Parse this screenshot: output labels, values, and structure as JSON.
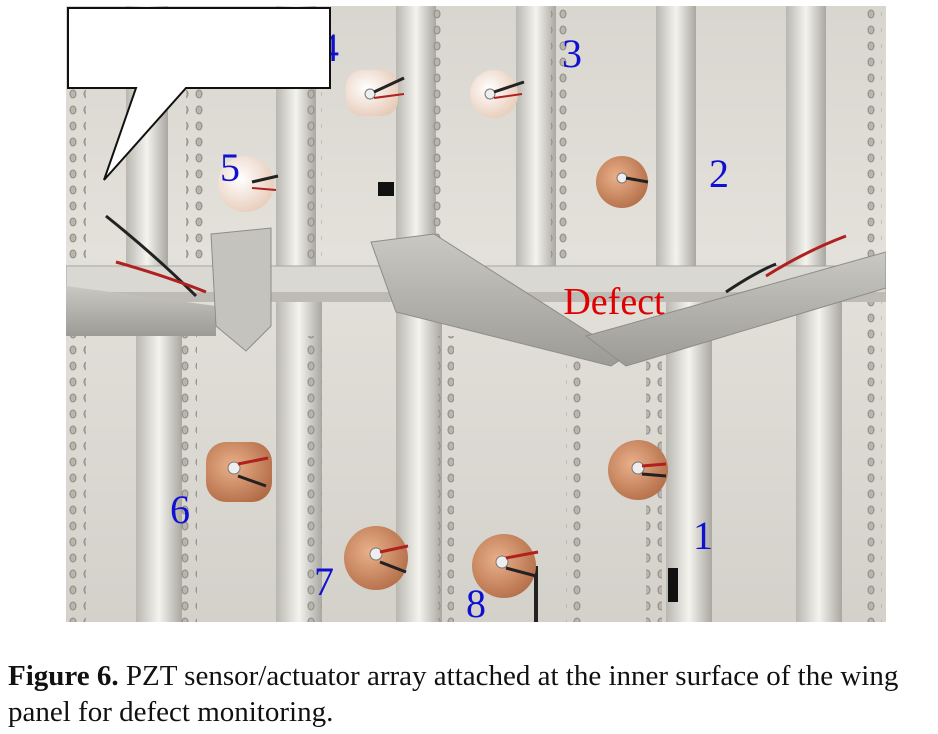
{
  "figure": {
    "sensors": [
      {
        "label": "1"
      },
      {
        "label": "2"
      },
      {
        "label": "3"
      },
      {
        "label": "4"
      },
      {
        "label": "5"
      },
      {
        "label": "6"
      },
      {
        "label": "7"
      },
      {
        "label": "8"
      }
    ],
    "callout": "Defect",
    "colors": {
      "label": "#1010d0",
      "callout_text": "#e00000",
      "pzt_disc": "#d9936a"
    }
  },
  "caption": {
    "label": "Figure 6.",
    "text": " PZT sensor/actuator array attached at the inner surface of the wing panel for defect monitoring."
  }
}
